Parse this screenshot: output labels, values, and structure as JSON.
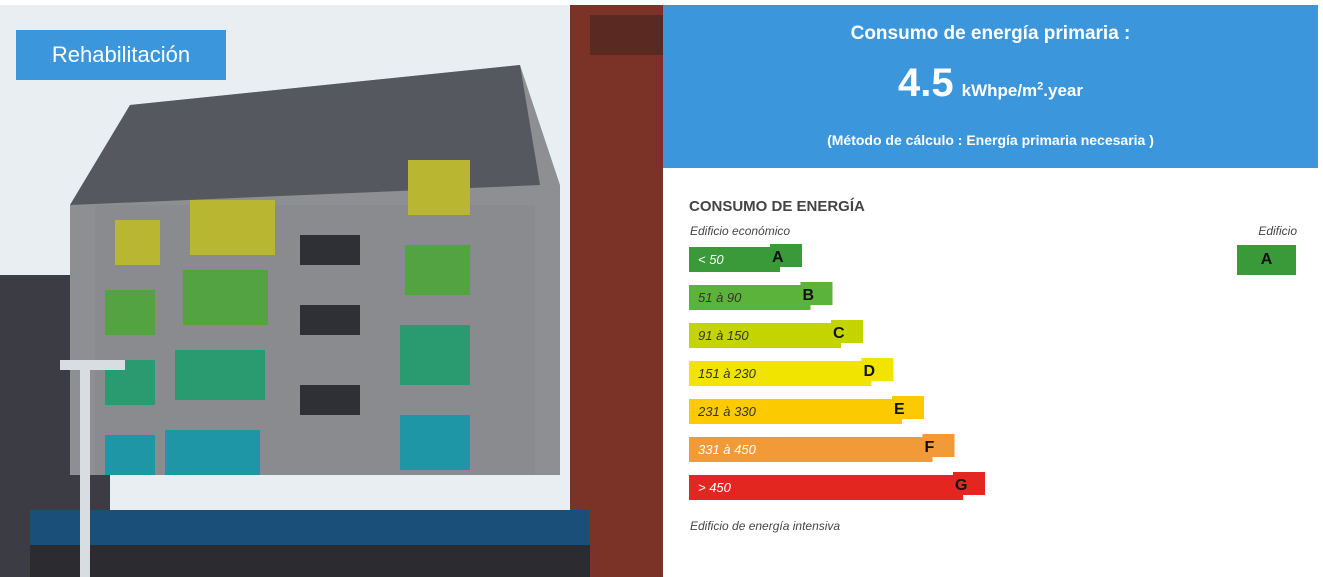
{
  "photo_label": "Rehabilitación",
  "header": {
    "title": "Consumo de energía primaria :",
    "value": "4.5",
    "unit_main": "kWhpe/m",
    "unit_sup": "2",
    "unit_end": ".year",
    "method": "(Método de cálculo : Energía primaria necesaria )"
  },
  "scale": {
    "title": "CONSUMO DE ENERGÍA",
    "top_label": "Edificio económico",
    "building_label": "Edificio",
    "building_class": "A",
    "bottom_label": "Edificio de energía intensiva",
    "rows": [
      {
        "range": "< 50",
        "letter": "A",
        "color": "#3a9a3a"
      },
      {
        "range": "51 à 90",
        "letter": "B",
        "color": "#5cb33b"
      },
      {
        "range": "91 à 150",
        "letter": "C",
        "color": "#c3d400"
      },
      {
        "range": "151 à 230",
        "letter": "D",
        "color": "#f0e400"
      },
      {
        "range": "231 à 330",
        "letter": "E",
        "color": "#fcca00"
      },
      {
        "range": "331 à 450",
        "letter": "F",
        "color": "#f29a38"
      },
      {
        "range": "> 450",
        "letter": "G",
        "color": "#e3261f"
      }
    ]
  }
}
